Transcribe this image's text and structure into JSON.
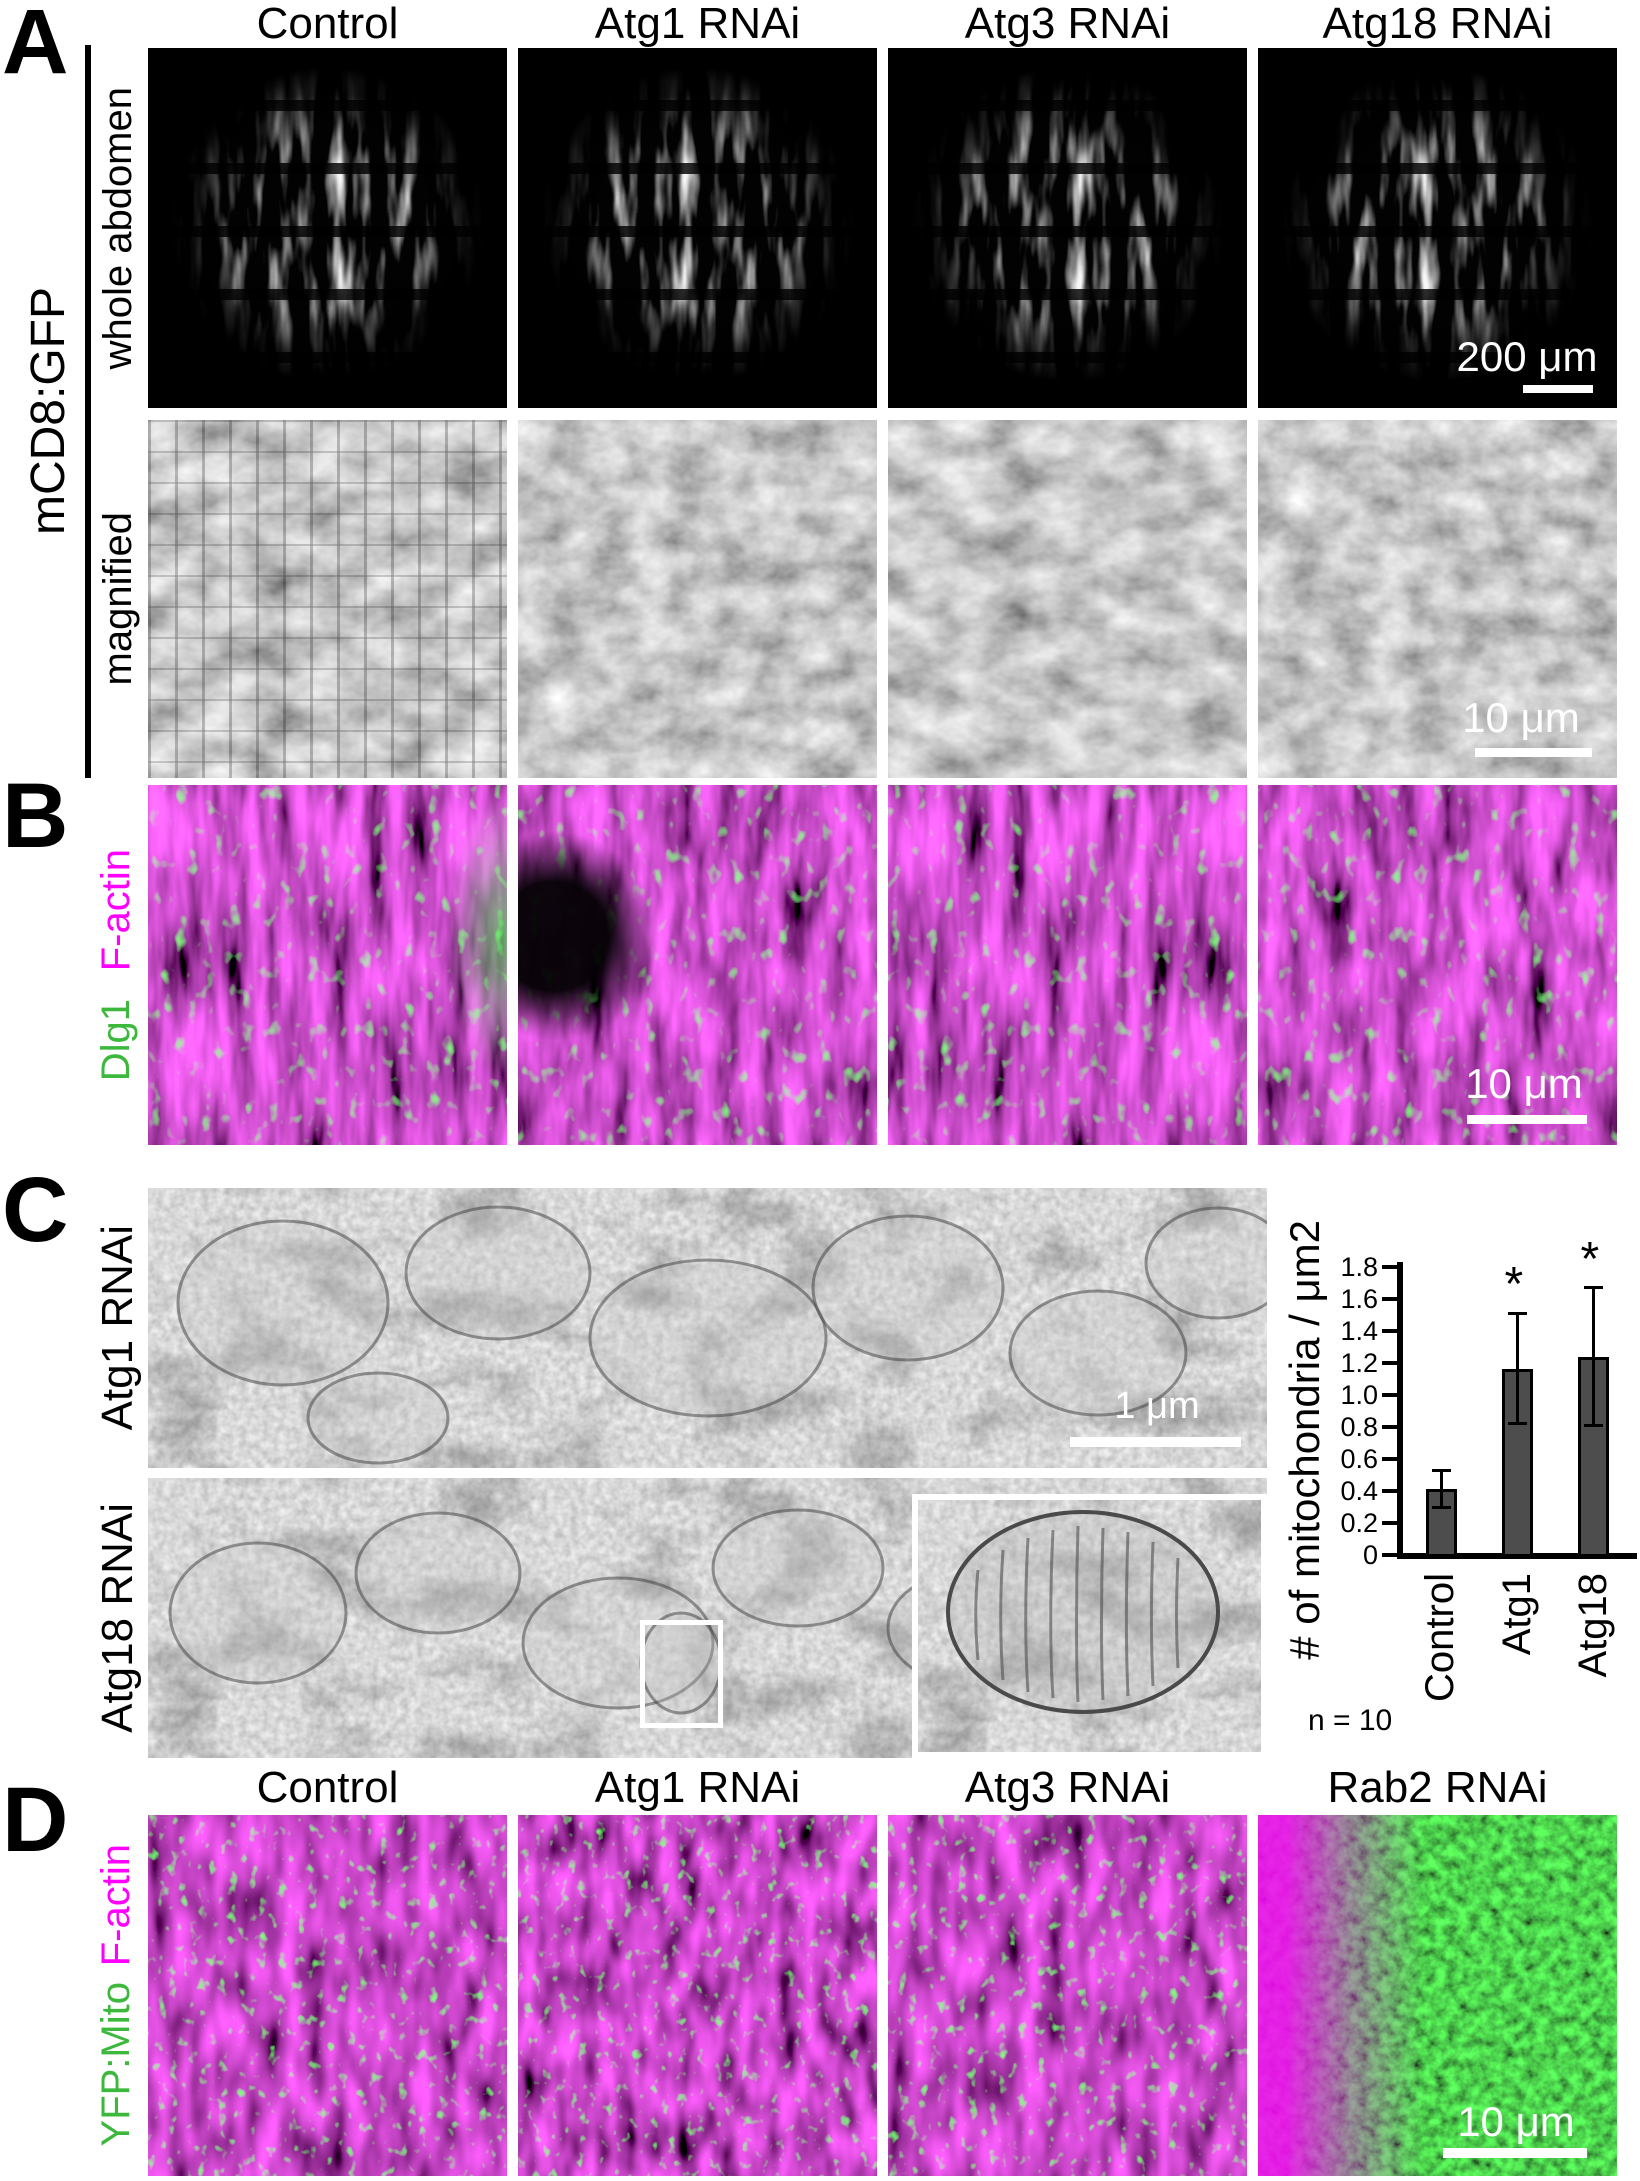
{
  "panel_a": {
    "letter": "A",
    "column_headers": [
      "Control",
      "Atg1 RNAi",
      "Atg3 RNAi",
      "Atg18 RNAi"
    ],
    "side_label": "mCD8:GFP",
    "row_labels": [
      "whole abdomen",
      "magnified"
    ],
    "scalebars": {
      "whole_abdomen": "200 μm",
      "magnified": "10 μm"
    }
  },
  "panel_b": {
    "letter": "B",
    "stain_labels": [
      {
        "text": "Dlg1",
        "color": "#3cb83c"
      },
      {
        "text": "F-actin",
        "color": "#ff00ff"
      }
    ],
    "scalebar": "10 μm"
  },
  "panel_c": {
    "letter": "C",
    "row_labels": [
      "Atg1 RNAi",
      "Atg18 RNAi"
    ],
    "scalebar": "1 μm"
  },
  "panel_d": {
    "letter": "D",
    "column_headers": [
      "Control",
      "Atg1 RNAi",
      "Atg3 RNAi",
      "Rab2 RNAi"
    ],
    "stain_labels": [
      {
        "text": "YFP:Mito",
        "color": "#3cb83c"
      },
      {
        "text": "F-actin",
        "color": "#ff00ff"
      }
    ],
    "scalebar": "10 μm"
  },
  "chart_data": {
    "type": "bar",
    "title": "",
    "xlabel": "",
    "ylabel": "# of mitochondria / μm2",
    "categories": [
      "Control",
      "Atg1",
      "Atg18"
    ],
    "values": [
      0.41,
      1.16,
      1.24
    ],
    "errors_low": [
      0.11,
      0.34,
      0.43
    ],
    "errors_high": [
      0.12,
      0.35,
      0.43
    ],
    "significance": [
      "",
      "*",
      "*"
    ],
    "ylim": [
      0,
      1.8
    ],
    "yticks": [
      0,
      0.2,
      0.4,
      0.6,
      0.8,
      1.0,
      1.2,
      1.4,
      1.6,
      1.8
    ],
    "ytick_labels": [
      "0",
      "0.2",
      "0.4",
      "0.6",
      "0.8",
      "1.0",
      "1.2",
      "1.4",
      "1.6",
      "1.8"
    ],
    "note": "n = 10",
    "bar_color": "#4d4d4d",
    "grid": false,
    "legend_position": "none"
  }
}
